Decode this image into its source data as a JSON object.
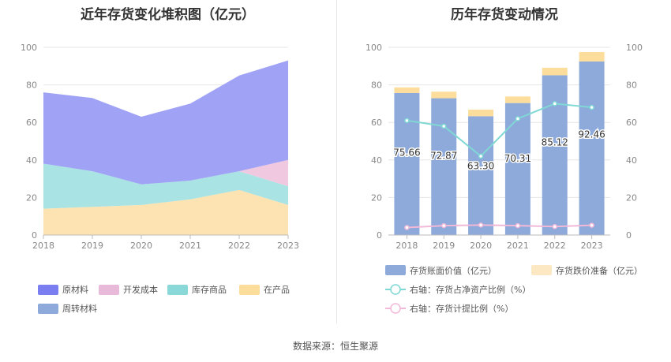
{
  "source_label": "数据来源：恒生聚源",
  "chart_data": [
    {
      "type": "area",
      "title": "近年存货变化堆积图（亿元）",
      "x": [
        "2018",
        "2019",
        "2020",
        "2021",
        "2022",
        "2023"
      ],
      "ylim": [
        0,
        100
      ],
      "yticks": [
        0,
        20,
        40,
        60,
        80,
        100
      ],
      "grid": true,
      "legend": "bottom",
      "series": [
        {
          "name": "在产品",
          "values": [
            14,
            15,
            16,
            19,
            24,
            16
          ],
          "color": "#fde3b2"
        },
        {
          "name": "库存商品",
          "values": [
            24,
            19,
            11,
            10,
            10,
            10
          ],
          "color": "#a9e3e3"
        },
        {
          "name": "开发成本",
          "values": [
            0,
            0,
            0,
            0,
            0,
            14
          ],
          "color": "#f0c8e0"
        },
        {
          "name": "原材料",
          "values": [
            38,
            39,
            36,
            41,
            51,
            53
          ],
          "color": "#a0a3f5"
        },
        {
          "name": "周转材料",
          "values": [
            0,
            0,
            0,
            0,
            0,
            0
          ],
          "color": "#8eaadb"
        }
      ],
      "legend_order": [
        "原材料",
        "开发成本",
        "库存商品",
        "在产品",
        "周转材料"
      ],
      "legend_colors": {
        "原材料": "#7b7ef0",
        "开发成本": "#e8b9d9",
        "库存商品": "#8ad8d8",
        "在产品": "#fddd9c",
        "周转材料": "#8eaadb"
      }
    },
    {
      "type": "bar",
      "title": "历年存货变动情况",
      "categories": [
        "2018",
        "2019",
        "2020",
        "2021",
        "2022",
        "2023"
      ],
      "ylim": [
        0,
        100
      ],
      "y2lim": [
        0,
        100
      ],
      "yticks": [
        0,
        20,
        40,
        60,
        80,
        100
      ],
      "legend": "bottom",
      "series": [
        {
          "name": "存货账面价值（亿元）",
          "values": [
            75.66,
            72.87,
            63.3,
            70.31,
            85.12,
            92.46
          ],
          "color": "#8eaadb",
          "labels": [
            "75.66",
            "72.87",
            "63.30",
            "70.31",
            "85.12",
            "92.46"
          ]
        },
        {
          "name": "存货跌价准备（亿元）",
          "values": [
            3.0,
            3.5,
            3.5,
            3.5,
            4.0,
            5.0
          ],
          "color": "#fddd9c"
        },
        {
          "name": "右轴：存货占净资产比例（%）",
          "type": "line",
          "axis": "right",
          "values": [
            61,
            58,
            42,
            62,
            70,
            68
          ],
          "color": "#7fd8d4"
        },
        {
          "name": "右轴：存货计提比例（%）",
          "type": "line",
          "axis": "right",
          "values": [
            4,
            5,
            5.3,
            5,
            4.5,
            5.2
          ],
          "color": "#f2b8d8"
        }
      ]
    }
  ]
}
